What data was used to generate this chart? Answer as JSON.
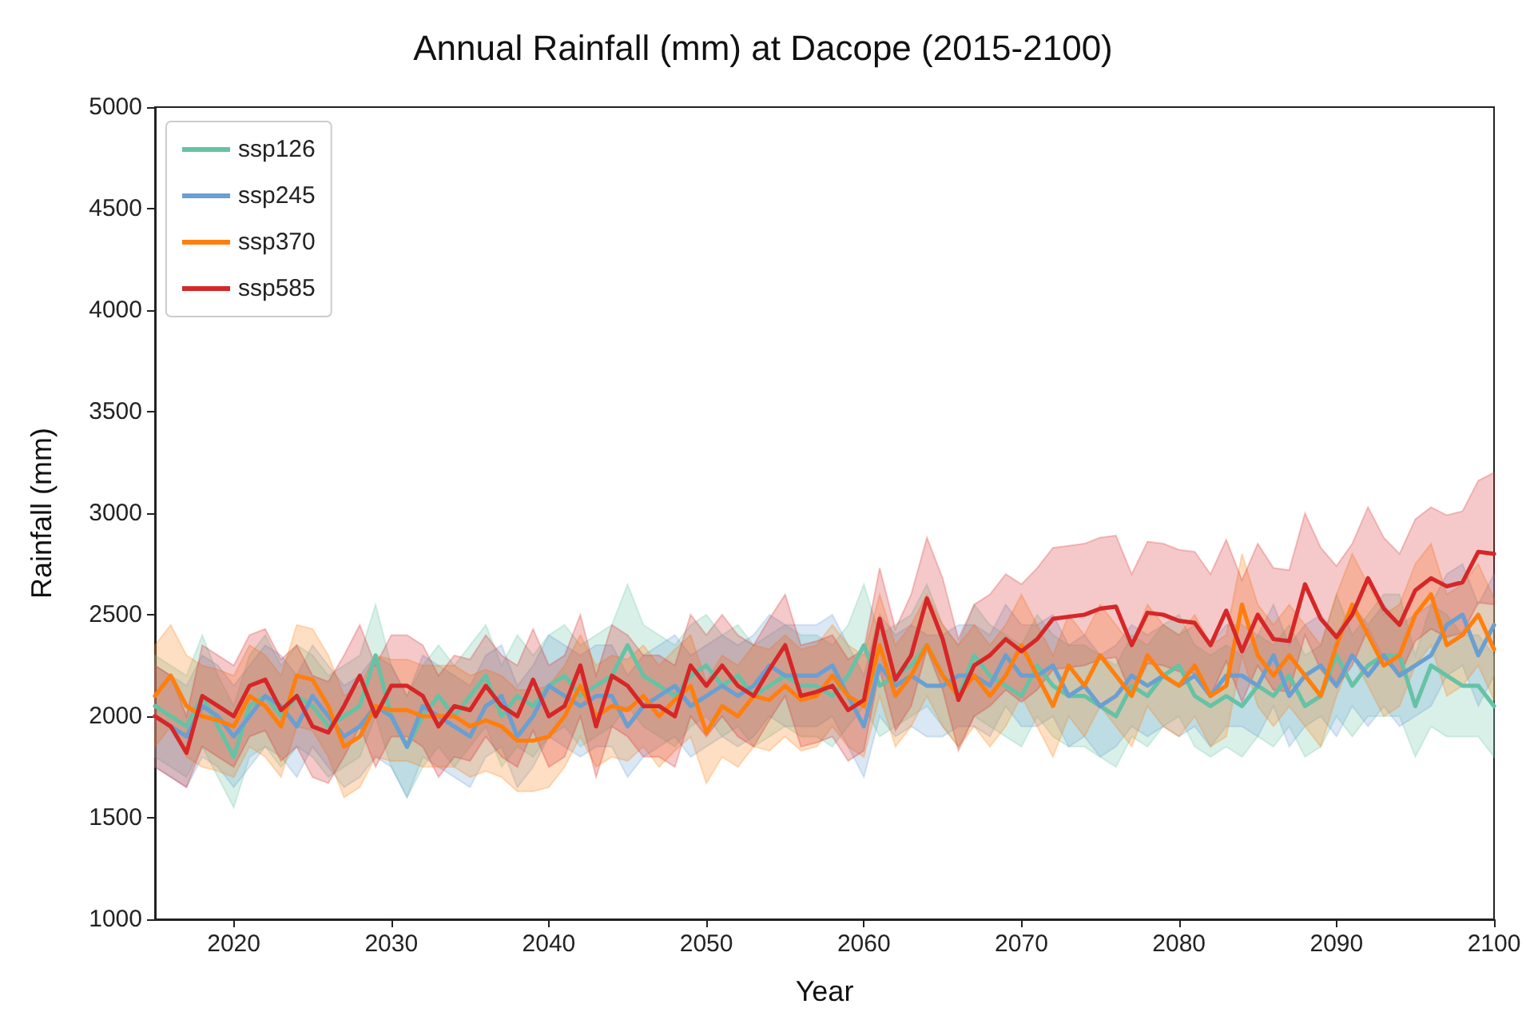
{
  "chart_data": {
    "type": "line",
    "title": "Annual Rainfall (mm) at Dacope (2015-2100)",
    "xlabel": "Year",
    "ylabel": "Rainfall (mm)",
    "x": [
      2015,
      2016,
      2017,
      2018,
      2019,
      2020,
      2021,
      2022,
      2023,
      2024,
      2025,
      2026,
      2027,
      2028,
      2029,
      2030,
      2031,
      2032,
      2033,
      2034,
      2035,
      2036,
      2037,
      2038,
      2039,
      2040,
      2041,
      2042,
      2043,
      2044,
      2045,
      2046,
      2047,
      2048,
      2049,
      2050,
      2051,
      2052,
      2053,
      2054,
      2055,
      2056,
      2057,
      2058,
      2059,
      2060,
      2061,
      2062,
      2063,
      2064,
      2065,
      2066,
      2067,
      2068,
      2069,
      2070,
      2071,
      2072,
      2073,
      2074,
      2075,
      2076,
      2077,
      2078,
      2079,
      2080,
      2081,
      2082,
      2083,
      2084,
      2085,
      2086,
      2087,
      2088,
      2089,
      2090,
      2091,
      2092,
      2093,
      2094,
      2095,
      2096,
      2097,
      2098,
      2099,
      2100
    ],
    "xlim": [
      2015,
      2100
    ],
    "xticks": [
      2020,
      2030,
      2040,
      2050,
      2060,
      2070,
      2080,
      2090,
      2100
    ],
    "ylim": [
      1000,
      5000
    ],
    "yticks": [
      1000,
      1500,
      2000,
      2500,
      3000,
      3500,
      4000,
      4500,
      5000
    ],
    "legend": "top left",
    "marker": "none",
    "line_style": "solid",
    "series": [
      {
        "name": "ssp126",
        "color": "#66c2a5",
        "values": [
          2050,
          2000,
          1950,
          2100,
          1950,
          1800,
          2050,
          2100,
          2000,
          2100,
          2050,
          1950,
          2000,
          2050,
          2300,
          2000,
          1850,
          2000,
          2100,
          2000,
          2100,
          2200,
          2000,
          2100,
          2050,
          2150,
          2200,
          2100,
          2150,
          2200,
          2350,
          2200,
          2150,
          2100,
          2200,
          2250,
          2150,
          2200,
          2100,
          2150,
          2200,
          2150,
          2150,
          2100,
          2200,
          2350,
          2150,
          2200,
          2250,
          2350,
          2200,
          2100,
          2300,
          2200,
          2150,
          2100,
          2250,
          2150,
          2100,
          2100,
          2050,
          2000,
          2150,
          2100,
          2200,
          2250,
          2100,
          2050,
          2100,
          2050,
          2150,
          2100,
          2200,
          2050,
          2100,
          2300,
          2150,
          2250,
          2300,
          2300,
          2050,
          2250,
          2200,
          2150,
          2150,
          2050
        ],
        "lower": [
          1800,
          1750,
          1700,
          1850,
          1700,
          1550,
          1800,
          1850,
          1750,
          1850,
          1800,
          1700,
          1750,
          1800,
          2000,
          1750,
          1600,
          1750,
          1850,
          1750,
          1850,
          1950,
          1750,
          1850,
          1800,
          1900,
          1950,
          1850,
          1900,
          1950,
          2050,
          1950,
          1900,
          1850,
          1950,
          2000,
          1900,
          1950,
          1850,
          1900,
          1950,
          1900,
          1900,
          1850,
          1950,
          2050,
          1900,
          1950,
          2000,
          2050,
          1950,
          1850,
          2000,
          1950,
          1900,
          1850,
          2000,
          1900,
          1850,
          1850,
          1800,
          1750,
          1900,
          1850,
          1950,
          2000,
          1850,
          1800,
          1850,
          1800,
          1900,
          1850,
          1950,
          1800,
          1850,
          2000,
          1900,
          2000,
          2000,
          2000,
          1800,
          1950,
          1900,
          1900,
          1900,
          1800
        ],
        "upper": [
          2300,
          2250,
          2200,
          2400,
          2200,
          2050,
          2300,
          2400,
          2250,
          2350,
          2300,
          2200,
          2250,
          2300,
          2550,
          2250,
          2100,
          2250,
          2350,
          2250,
          2350,
          2450,
          2250,
          2400,
          2300,
          2400,
          2450,
          2350,
          2400,
          2450,
          2650,
          2450,
          2400,
          2350,
          2450,
          2500,
          2400,
          2450,
          2350,
          2400,
          2450,
          2400,
          2400,
          2350,
          2450,
          2650,
          2400,
          2450,
          2500,
          2650,
          2450,
          2350,
          2550,
          2450,
          2400,
          2350,
          2500,
          2400,
          2350,
          2350,
          2300,
          2250,
          2400,
          2350,
          2450,
          2500,
          2350,
          2300,
          2350,
          2300,
          2400,
          2350,
          2450,
          2300,
          2350,
          2600,
          2400,
          2500,
          2600,
          2600,
          2300,
          2550,
          2500,
          2400,
          2400,
          2300
        ]
      },
      {
        "name": "ssp245",
        "color": "#6a9fd2",
        "values": [
          2000,
          1950,
          1900,
          2050,
          2000,
          1900,
          2000,
          2100,
          2050,
          1950,
          2100,
          2000,
          1900,
          1950,
          2050,
          2000,
          1850,
          2050,
          2000,
          1950,
          1900,
          2050,
          2100,
          1900,
          2000,
          2150,
          2100,
          2050,
          2100,
          2100,
          1950,
          2050,
          2100,
          2150,
          2050,
          2100,
          2150,
          2100,
          2150,
          2250,
          2200,
          2200,
          2200,
          2250,
          2100,
          1950,
          2250,
          2150,
          2200,
          2150,
          2150,
          2200,
          2200,
          2150,
          2300,
          2200,
          2200,
          2250,
          2100,
          2150,
          2050,
          2100,
          2200,
          2150,
          2200,
          2150,
          2200,
          2100,
          2200,
          2200,
          2150,
          2300,
          2100,
          2200,
          2250,
          2150,
          2300,
          2200,
          2300,
          2200,
          2250,
          2300,
          2450,
          2500,
          2300,
          2450
        ],
        "lower": [
          1750,
          1700,
          1650,
          1800,
          1750,
          1650,
          1750,
          1850,
          1800,
          1700,
          1850,
          1750,
          1650,
          1700,
          1800,
          1750,
          1600,
          1800,
          1750,
          1700,
          1650,
          1800,
          1850,
          1650,
          1750,
          1900,
          1850,
          1800,
          1850,
          1850,
          1700,
          1800,
          1850,
          1900,
          1800,
          1850,
          1900,
          1850,
          1900,
          2000,
          1950,
          1950,
          1950,
          2000,
          1850,
          1700,
          2000,
          1900,
          1950,
          1900,
          1900,
          1950,
          1950,
          1900,
          2050,
          1950,
          1950,
          2000,
          1850,
          1900,
          1800,
          1850,
          1950,
          1900,
          1950,
          1900,
          1950,
          1850,
          1950,
          1950,
          1900,
          2050,
          1850,
          1950,
          2000,
          1900,
          2050,
          1950,
          2050,
          1950,
          2000,
          2050,
          2200,
          2250,
          2050,
          2200
        ],
        "upper": [
          2250,
          2200,
          2150,
          2300,
          2250,
          2150,
          2250,
          2350,
          2300,
          2200,
          2350,
          2250,
          2150,
          2200,
          2300,
          2250,
          2100,
          2300,
          2250,
          2200,
          2150,
          2300,
          2350,
          2150,
          2250,
          2400,
          2350,
          2300,
          2350,
          2350,
          2200,
          2300,
          2350,
          2400,
          2300,
          2350,
          2400,
          2350,
          2400,
          2500,
          2450,
          2450,
          2450,
          2500,
          2350,
          2200,
          2500,
          2400,
          2450,
          2400,
          2400,
          2450,
          2450,
          2400,
          2550,
          2450,
          2450,
          2500,
          2350,
          2400,
          2300,
          2350,
          2450,
          2400,
          2450,
          2400,
          2450,
          2350,
          2450,
          2450,
          2400,
          2550,
          2350,
          2450,
          2500,
          2400,
          2550,
          2450,
          2550,
          2450,
          2500,
          2550,
          2700,
          2750,
          2550,
          2700
        ]
      },
      {
        "name": "ssp370",
        "color": "#ff7f0e",
        "values": [
          2100,
          2200,
          2050,
          2000,
          1980,
          1950,
          2100,
          2050,
          1950,
          2200,
          2180,
          2050,
          1850,
          1900,
          2050,
          2030,
          2030,
          2000,
          2000,
          2000,
          1950,
          1980,
          1950,
          1880,
          1880,
          1900,
          2000,
          2150,
          2000,
          2050,
          2030,
          2100,
          2000,
          2080,
          2150,
          1920,
          2050,
          2000,
          2100,
          2080,
          2150,
          2080,
          2100,
          2200,
          2100,
          2050,
          2350,
          2100,
          2200,
          2350,
          2200,
          2100,
          2200,
          2100,
          2200,
          2350,
          2200,
          2050,
          2250,
          2150,
          2300,
          2200,
          2100,
          2300,
          2200,
          2150,
          2250,
          2100,
          2150,
          2550,
          2300,
          2200,
          2300,
          2200,
          2100,
          2350,
          2550,
          2400,
          2250,
          2300,
          2500,
          2600,
          2350,
          2400,
          2500,
          2330
        ],
        "lower": [
          1850,
          1950,
          1800,
          1750,
          1730,
          1700,
          1850,
          1800,
          1700,
          1950,
          1930,
          1800,
          1600,
          1650,
          1800,
          1780,
          1780,
          1750,
          1750,
          1750,
          1700,
          1730,
          1700,
          1630,
          1630,
          1650,
          1750,
          1900,
          1750,
          1800,
          1780,
          1850,
          1750,
          1830,
          1900,
          1670,
          1800,
          1750,
          1850,
          1830,
          1900,
          1830,
          1850,
          1950,
          1850,
          1800,
          2100,
          1850,
          1950,
          2100,
          1950,
          1850,
          1950,
          1850,
          1950,
          2100,
          1950,
          1800,
          2000,
          1900,
          2050,
          1950,
          1850,
          2050,
          1950,
          1900,
          2000,
          1850,
          1900,
          2300,
          2050,
          1950,
          2050,
          1950,
          1850,
          2100,
          2300,
          2150,
          2000,
          2050,
          2250,
          2350,
          2100,
          2150,
          2250,
          2080
        ],
        "upper": [
          2350,
          2450,
          2300,
          2250,
          2230,
          2200,
          2350,
          2300,
          2200,
          2450,
          2430,
          2300,
          2100,
          2150,
          2300,
          2280,
          2280,
          2250,
          2250,
          2250,
          2200,
          2230,
          2200,
          2130,
          2130,
          2150,
          2250,
          2400,
          2250,
          2300,
          2280,
          2350,
          2250,
          2330,
          2400,
          2170,
          2300,
          2250,
          2350,
          2330,
          2400,
          2330,
          2350,
          2450,
          2350,
          2300,
          2600,
          2350,
          2450,
          2600,
          2450,
          2350,
          2450,
          2350,
          2450,
          2600,
          2450,
          2300,
          2500,
          2400,
          2550,
          2450,
          2350,
          2550,
          2450,
          2400,
          2500,
          2350,
          2400,
          2800,
          2550,
          2450,
          2550,
          2450,
          2350,
          2600,
          2800,
          2650,
          2500,
          2550,
          2750,
          2850,
          2600,
          2650,
          2750,
          2580
        ]
      },
      {
        "name": "ssp585",
        "color": "#d62728",
        "values": [
          2000,
          1950,
          1820,
          2100,
          2050,
          2000,
          2150,
          2180,
          2030,
          2100,
          1950,
          1920,
          2050,
          2200,
          2000,
          2150,
          2150,
          2100,
          1950,
          2050,
          2030,
          2150,
          2050,
          2000,
          2180,
          2000,
          2050,
          2250,
          1950,
          2200,
          2150,
          2050,
          2050,
          2000,
          2250,
          2150,
          2250,
          2150,
          2100,
          2230,
          2350,
          2100,
          2120,
          2150,
          2030,
          2080,
          2480,
          2180,
          2300,
          2580,
          2380,
          2080,
          2250,
          2300,
          2380,
          2320,
          2380,
          2480,
          2490,
          2500,
          2530,
          2540,
          2350,
          2510,
          2500,
          2470,
          2460,
          2350,
          2520,
          2320,
          2500,
          2380,
          2370,
          2650,
          2480,
          2390,
          2500,
          2680,
          2530,
          2450,
          2620,
          2680,
          2640,
          2660,
          2810,
          2800
        ],
        "lower": [
          1750,
          1700,
          1650,
          1850,
          1800,
          1750,
          1900,
          1930,
          1780,
          1850,
          1700,
          1670,
          1800,
          1950,
          1750,
          1900,
          1900,
          1850,
          1700,
          1800,
          1780,
          1900,
          1800,
          1750,
          1930,
          1750,
          1800,
          2000,
          1700,
          1950,
          1900,
          1800,
          1800,
          1750,
          2000,
          1900,
          2000,
          1900,
          1850,
          1980,
          2100,
          1850,
          1870,
          1900,
          1780,
          1830,
          2230,
          1930,
          2050,
          2330,
          2130,
          1830,
          2000,
          2050,
          2130,
          2070,
          2130,
          2230,
          2240,
          2250,
          2280,
          2290,
          2100,
          2260,
          2250,
          2220,
          2210,
          2100,
          2270,
          2070,
          2250,
          2130,
          2120,
          2400,
          2230,
          2140,
          2250,
          2430,
          2280,
          2200,
          2370,
          2430,
          2390,
          2410,
          2560,
          2550
        ],
        "upper": [
          2250,
          2200,
          2000,
          2350,
          2300,
          2250,
          2400,
          2430,
          2280,
          2350,
          2200,
          2170,
          2300,
          2450,
          2250,
          2400,
          2400,
          2350,
          2200,
          2300,
          2280,
          2400,
          2300,
          2250,
          2430,
          2250,
          2300,
          2500,
          2200,
          2450,
          2400,
          2300,
          2300,
          2250,
          2500,
          2400,
          2500,
          2400,
          2350,
          2480,
          2600,
          2350,
          2370,
          2400,
          2280,
          2330,
          2730,
          2430,
          2600,
          2880,
          2680,
          2380,
          2550,
          2600,
          2700,
          2650,
          2730,
          2830,
          2840,
          2850,
          2880,
          2890,
          2700,
          2860,
          2850,
          2820,
          2810,
          2700,
          2870,
          2670,
          2850,
          2730,
          2720,
          3000,
          2830,
          2740,
          2850,
          3030,
          2880,
          2800,
          2970,
          3030,
          2990,
          3010,
          3160,
          3200
        ]
      }
    ]
  }
}
